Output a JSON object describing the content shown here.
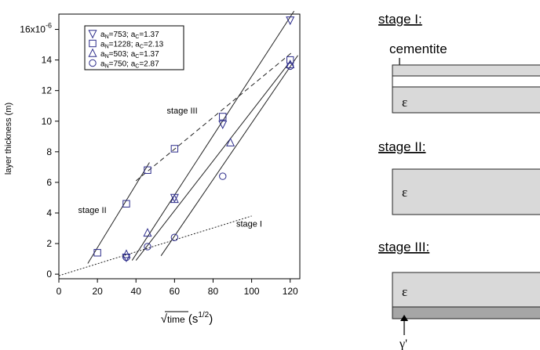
{
  "chart_data": {
    "type": "scatter",
    "xlabel_main": "time",
    "xlabel_unit": "(s",
    "xlabel_exp": "1/2",
    "xlabel_close": ")",
    "ylabel": "layer thickness (m)",
    "xlim": [
      0,
      125
    ],
    "ylim": [
      -0.3,
      17
    ],
    "xticks": [
      0,
      20,
      40,
      60,
      80,
      100,
      120
    ],
    "yticks": [
      0,
      2,
      4,
      6,
      8,
      10,
      12,
      14,
      16
    ],
    "y_exponent_label": "x10",
    "y_exponent_power": "-6",
    "top_tick_mantissa": "16",
    "legend": [
      {
        "marker": "triangle-down",
        "text": "a",
        "sub1": "N",
        "val1": "=753; a",
        "sub2": "C",
        "val2": "=1.37"
      },
      {
        "marker": "square",
        "text": "a",
        "sub1": "N",
        "val1": "=1228; a",
        "sub2": "C",
        "val2": "=2.13"
      },
      {
        "marker": "triangle-up",
        "text": "a",
        "sub1": "N",
        "val1": "=503; a",
        "sub2": "C",
        "val2": "=1.37"
      },
      {
        "marker": "circle",
        "text": "a",
        "sub1": "N",
        "val1": "=750; a",
        "sub2": "C",
        "val2": "=2.87"
      }
    ],
    "series": [
      {
        "marker": "triangle-down",
        "points": [
          [
            35,
            1.1
          ],
          [
            60,
            5.0
          ],
          [
            85,
            9.8
          ],
          [
            120,
            16.6
          ]
        ]
      },
      {
        "marker": "square",
        "points": [
          [
            20,
            1.4
          ],
          [
            35,
            4.6
          ],
          [
            46,
            6.8
          ],
          [
            60,
            8.2
          ],
          [
            85,
            10.3
          ],
          [
            120,
            14.0
          ]
        ]
      },
      {
        "marker": "triangle-up",
        "points": [
          [
            35,
            1.3
          ],
          [
            46,
            2.7
          ],
          [
            60,
            4.9
          ],
          [
            89,
            8.6
          ],
          [
            120,
            13.7
          ]
        ]
      },
      {
        "marker": "circle",
        "points": [
          [
            35,
            1.1
          ],
          [
            46,
            1.8
          ],
          [
            60,
            2.4
          ],
          [
            85,
            6.4
          ],
          [
            120,
            13.6
          ]
        ]
      }
    ],
    "fit_lines": [
      {
        "style": "solid",
        "from": [
          15,
          0.7
        ],
        "to": [
          47,
          7.3
        ]
      },
      {
        "style": "dashed",
        "from": [
          40,
          6.1
        ],
        "to": [
          121,
          14.5
        ]
      },
      {
        "style": "dotted",
        "from": [
          0,
          -0.1
        ],
        "to": [
          100,
          3.8
        ]
      },
      {
        "style": "solid",
        "from": [
          38,
          0.9
        ],
        "to": [
          122,
          17.2
        ]
      },
      {
        "style": "solid",
        "from": [
          40,
          0.9
        ],
        "to": [
          120,
          13.9
        ]
      },
      {
        "style": "solid",
        "from": [
          53,
          1.2
        ],
        "to": [
          124,
          14.3
        ]
      }
    ],
    "annotations": [
      {
        "text": "stage III",
        "at": [
          56,
          10.5
        ]
      },
      {
        "text": "stage II",
        "at": [
          10,
          4.0
        ]
      },
      {
        "text": "stage I",
        "at": [
          92,
          3.1
        ]
      }
    ]
  },
  "schematic": {
    "stage1_title": "stage I:",
    "cementite_label": "cementite",
    "stage1_layer": "ε",
    "stage2_title": "stage II:",
    "stage2_layer": "ε",
    "stage3_title": "stage III:",
    "stage3_layer": "ε",
    "gamma_label": "γ'",
    "fill_light": "#d9d9d9",
    "fill_dark": "#a6a6a6",
    "fill_white": "#ffffff"
  }
}
